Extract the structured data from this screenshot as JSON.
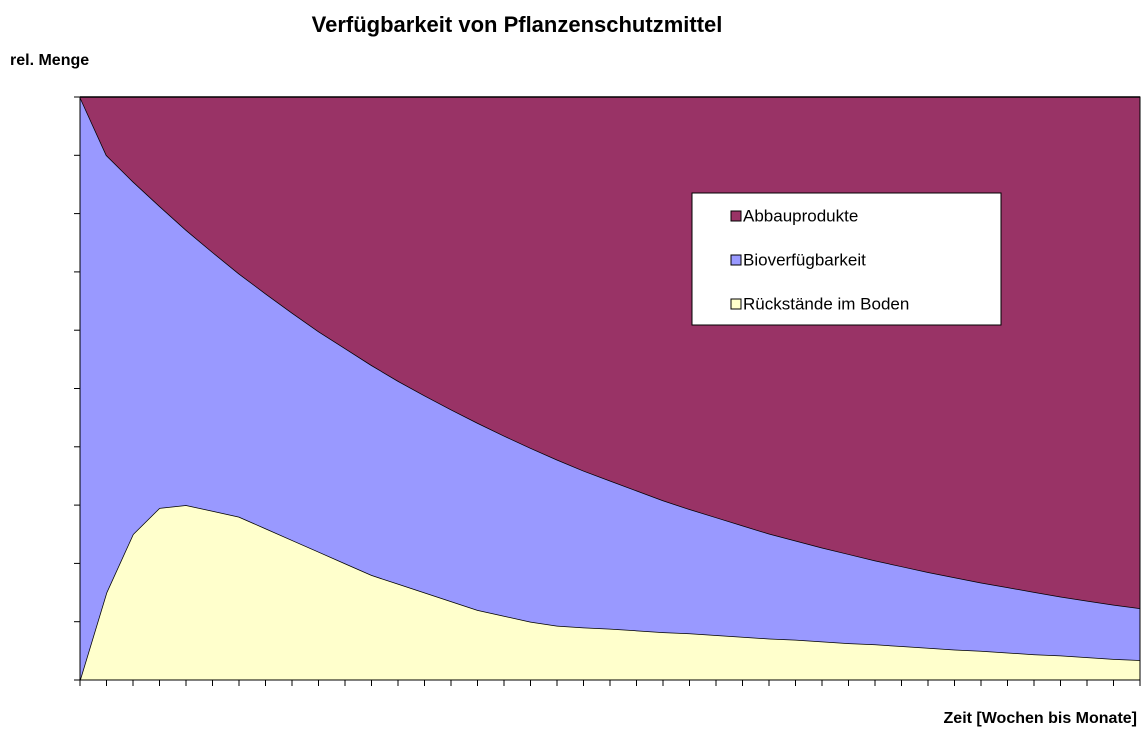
{
  "chart_data": {
    "type": "area",
    "stacked": true,
    "title": "Verfügbarkeit von Pflanzenschutzmittel",
    "y_label": "rel. Menge",
    "x_label": "Zeit [Wochen bis Monate]",
    "categories": [
      null,
      null,
      null,
      null,
      null,
      null,
      null,
      null,
      null,
      null,
      null,
      null,
      null,
      null,
      null,
      null,
      null,
      null,
      null,
      null,
      null,
      null,
      null,
      null,
      null,
      null,
      null,
      null,
      null,
      null,
      null,
      null,
      null,
      null,
      null,
      null,
      null,
      null,
      null,
      null,
      null
    ],
    "series": [
      {
        "name": "Rückstände im Boden",
        "color": "#ffffcc",
        "values": [
          0,
          15,
          25,
          29.5,
          30,
          29,
          28,
          26,
          24,
          22,
          20,
          18,
          16.5,
          15,
          13.5,
          12,
          11,
          10,
          9.3,
          9.0,
          8.8,
          8.5,
          8.2,
          8.0,
          7.7,
          7.4,
          7.1,
          6.9,
          6.6,
          6.3,
          6.1,
          5.8,
          5.5,
          5.2,
          5.0,
          4.7,
          4.4,
          4.2,
          3.9,
          3.6,
          3.4
        ]
      },
      {
        "name": "Bioverfügbarkeit",
        "color": "#9999ff",
        "values": [
          100,
          75,
          60.5,
          51.8,
          47.2,
          44.4,
          41.7,
          40.3,
          39.0,
          37.8,
          36.9,
          36.0,
          34.8,
          33.8,
          32.9,
          32.1,
          30.9,
          29.8,
          28.5,
          26.9,
          25.4,
          24.0,
          22.6,
          21.3,
          20.2,
          19.1,
          18.0,
          17.0,
          16.1,
          15.3,
          14.4,
          13.7,
          13.0,
          12.4,
          11.7,
          11.2,
          10.7,
          10.1,
          9.7,
          9.3,
          8.9
        ]
      },
      {
        "name": "Abbauprodukte",
        "color": "#993366",
        "values": [
          0,
          10,
          14.5,
          18.7,
          22.8,
          26.6,
          30.3,
          33.7,
          37.0,
          40.2,
          43.1,
          46.0,
          48.7,
          51.2,
          53.6,
          55.9,
          58.1,
          60.2,
          62.2,
          64.1,
          65.8,
          67.5,
          69.2,
          70.7,
          72.1,
          73.5,
          74.9,
          76.1,
          77.3,
          78.4,
          79.5,
          80.5,
          81.5,
          82.4,
          83.3,
          84.1,
          84.9,
          85.7,
          86.4,
          87.1,
          87.7
        ]
      }
    ],
    "ylim": [
      0,
      100
    ],
    "yticks": [
      0,
      10,
      20,
      30,
      40,
      50,
      60,
      70,
      80,
      90,
      100
    ]
  }
}
